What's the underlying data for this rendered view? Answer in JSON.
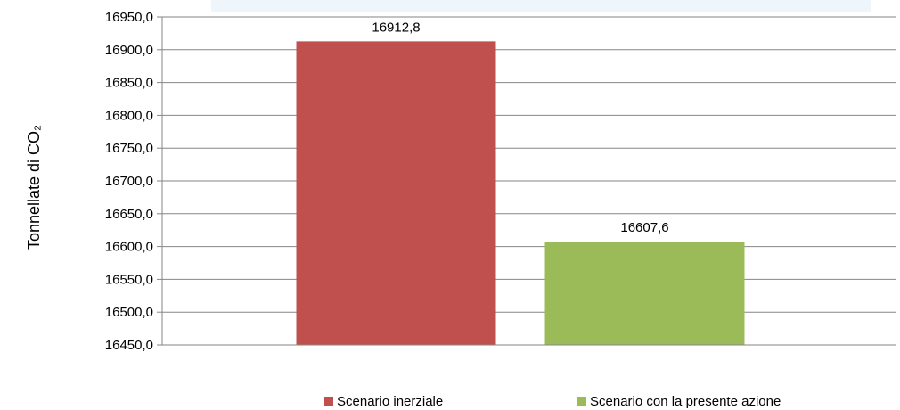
{
  "chart_data": {
    "type": "bar",
    "categories": [
      ""
    ],
    "series": [
      {
        "name": "Scenario inerziale",
        "values": [
          16912.8
        ],
        "color": "#c0504d"
      },
      {
        "name": "Scenario con la presente azione",
        "values": [
          16607.6
        ],
        "color": "#9bbb59"
      }
    ],
    "data_labels": [
      "16912,8",
      "16607,6"
    ],
    "ylabel": "Tonnellate di CO₂",
    "ylim": [
      16450.0,
      16950.0
    ],
    "yticks": [
      "16450,0",
      "16500,0",
      "16550,0",
      "16600,0",
      "16650,0",
      "16700,0",
      "16750,0",
      "16800,0",
      "16850,0",
      "16900,0",
      "16950,0"
    ],
    "ytick_values": [
      16450,
      16500,
      16550,
      16600,
      16650,
      16700,
      16750,
      16800,
      16850,
      16900,
      16950
    ],
    "grid": true,
    "legend_position": "bottom",
    "title_band_color": "#eef6fc"
  }
}
